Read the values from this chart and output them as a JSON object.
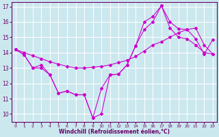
{
  "xlabel": "Windchill (Refroidissement éolien,°C)",
  "bg_color": "#cce8ef",
  "line_color": "#cc00cc",
  "grid_color": "#ffffff",
  "ylim": [
    9.5,
    17.3
  ],
  "xlim": [
    -0.5,
    23.5
  ],
  "yticks": [
    10,
    11,
    12,
    13,
    14,
    15,
    16,
    17
  ],
  "xticks": [
    0,
    1,
    2,
    3,
    4,
    5,
    6,
    7,
    8,
    9,
    10,
    11,
    12,
    13,
    14,
    15,
    16,
    17,
    18,
    19,
    20,
    21,
    22,
    23
  ],
  "line1_x": [
    0,
    1,
    2,
    3,
    4,
    5,
    6,
    7,
    8,
    9,
    10,
    11,
    12,
    13,
    14,
    15,
    16,
    17,
    18,
    19,
    20,
    21,
    22,
    23
  ],
  "line1_y": [
    14.2,
    13.85,
    13.0,
    13.2,
    12.55,
    11.35,
    11.5,
    11.25,
    11.25,
    9.75,
    11.65,
    12.55,
    12.6,
    13.2,
    14.45,
    16.0,
    16.35,
    17.05,
    16.0,
    15.55,
    15.5,
    14.9,
    13.9,
    14.85
  ],
  "line2_x": [
    0,
    1,
    2,
    3,
    4,
    5,
    6,
    7,
    8,
    9,
    10,
    11,
    12,
    13,
    14,
    15,
    16,
    17,
    18,
    19,
    20,
    21,
    22,
    23
  ],
  "line2_y": [
    14.2,
    14.0,
    13.8,
    13.6,
    13.4,
    13.25,
    13.1,
    13.0,
    13.0,
    13.05,
    13.1,
    13.2,
    13.35,
    13.5,
    13.75,
    14.1,
    14.5,
    14.7,
    15.0,
    15.3,
    15.5,
    15.6,
    14.5,
    13.9
  ],
  "line3_x": [
    0,
    1,
    2,
    3,
    4,
    5,
    6,
    7,
    8,
    9,
    10,
    11,
    12,
    13,
    14,
    15,
    16,
    17,
    18,
    19,
    20,
    21,
    22,
    23
  ],
  "line3_y": [
    14.2,
    13.85,
    13.0,
    13.0,
    12.55,
    11.35,
    11.5,
    11.25,
    11.25,
    9.75,
    10.0,
    12.55,
    12.6,
    13.2,
    14.45,
    15.5,
    16.0,
    17.05,
    15.6,
    15.0,
    14.9,
    14.5,
    14.0,
    13.9
  ]
}
